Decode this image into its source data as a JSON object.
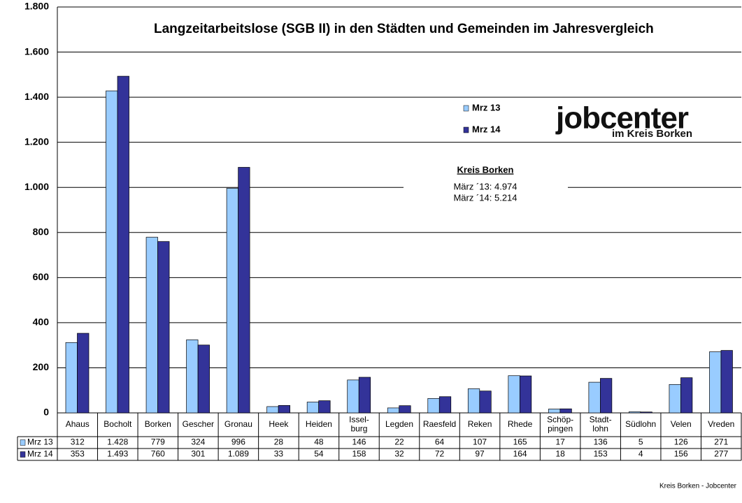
{
  "chart_data": {
    "type": "bar",
    "title": "Langzeitarbeitslose (SGB II) in den Städten und Gemeinden im Jahresvergleich",
    "categories": [
      "Ahaus",
      "Bocholt",
      "Borken",
      "Gescher",
      "Gronau",
      "Heek",
      "Heiden",
      "Issel-\nburg",
      "Legden",
      "Raesfeld",
      "Reken",
      "Rhede",
      "Schöp-\npingen",
      "Stadt-\nlohn",
      "Südlohn",
      "Velen",
      "Vreden"
    ],
    "series": [
      {
        "name": "Mrz 13",
        "color": "#99ccff",
        "values": [
          312,
          1428,
          779,
          324,
          996,
          28,
          48,
          146,
          22,
          64,
          107,
          165,
          17,
          136,
          5,
          126,
          271
        ],
        "value_labels": [
          "312",
          "1.428",
          "779",
          "324",
          "996",
          "28",
          "48",
          "146",
          "22",
          "64",
          "107",
          "165",
          "17",
          "136",
          "5",
          "126",
          "271"
        ]
      },
      {
        "name": "Mrz 14",
        "color": "#333399",
        "values": [
          353,
          1493,
          760,
          301,
          1089,
          33,
          54,
          158,
          32,
          72,
          97,
          164,
          18,
          153,
          4,
          156,
          277
        ],
        "value_labels": [
          "353",
          "1.493",
          "760",
          "301",
          "1.089",
          "33",
          "54",
          "158",
          "32",
          "72",
          "97",
          "164",
          "18",
          "153",
          "4",
          "156",
          "277"
        ]
      }
    ],
    "ylim": [
      0,
      1800
    ],
    "yticks": [
      0,
      200,
      400,
      600,
      800,
      {
        "value": 1000,
        "label": "1.000"
      },
      {
        "value": 1200,
        "label": "1.200"
      },
      {
        "value": 1400,
        "label": "1.400"
      },
      {
        "value": 1600,
        "label": "1.600"
      },
      {
        "value": 1800,
        "label": "1.800"
      }
    ],
    "grid": true,
    "annotation": {
      "title": "Kreis Borken",
      "lines": [
        "März ´13: 4.974",
        "März ´14: 5.214"
      ]
    },
    "logo": {
      "main": "jobcenter",
      "sub": "im Kreis Borken"
    },
    "footer": "Kreis Borken - Jobcenter"
  }
}
